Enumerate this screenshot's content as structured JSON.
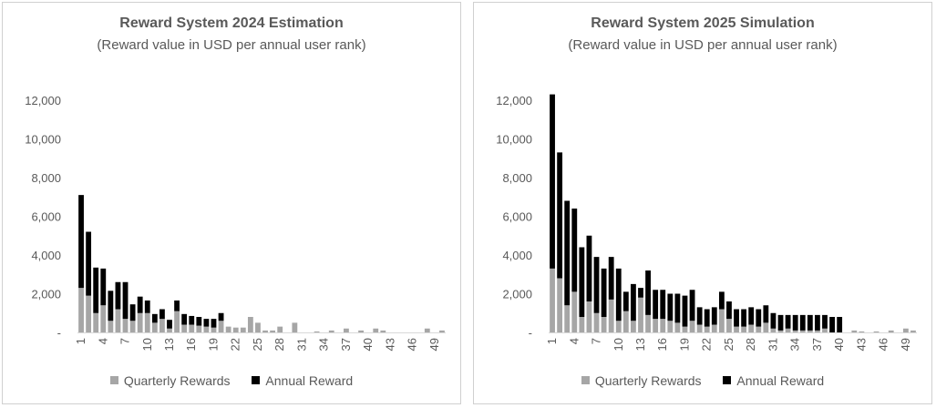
{
  "colors": {
    "quarterly": "#a6a6a6",
    "annual": "#000000",
    "axis": "#d9d9d9",
    "text": "#595959"
  },
  "chart_data": [
    {
      "type": "bar",
      "stacked": true,
      "title": "Reward System 2024 Estimation",
      "subtitle": "(Reward value in USD per annual user rank)",
      "xlabel": "",
      "ylabel": "",
      "ylim": [
        0,
        12000
      ],
      "y_ticks": [
        "-",
        "2,000",
        "4,000",
        "6,000",
        "8,000",
        "10,000",
        "12,000"
      ],
      "y_tick_values": [
        0,
        2000,
        4000,
        6000,
        8000,
        10000,
        12000
      ],
      "x": [
        1,
        2,
        3,
        4,
        5,
        6,
        7,
        8,
        9,
        10,
        11,
        12,
        13,
        14,
        15,
        16,
        17,
        18,
        19,
        20,
        21,
        22,
        23,
        24,
        25,
        26,
        27,
        28,
        29,
        30,
        31,
        32,
        33,
        34,
        35,
        36,
        37,
        38,
        39,
        40,
        41,
        42,
        43,
        44,
        45,
        46,
        47,
        48,
        49,
        50
      ],
      "x_tick_labels": [
        "1",
        "4",
        "7",
        "10",
        "13",
        "16",
        "19",
        "22",
        "25",
        "28",
        "31",
        "34",
        "37",
        "40",
        "43",
        "46",
        "49"
      ],
      "grid": false,
      "legend_position": "bottom",
      "series": [
        {
          "name": "Quarterly Rewards",
          "values": [
            2300,
            1900,
            1000,
            1400,
            600,
            1200,
            700,
            600,
            1000,
            1000,
            500,
            700,
            200,
            1100,
            400,
            400,
            350,
            300,
            250,
            600,
            300,
            250,
            250,
            800,
            500,
            100,
            100,
            300,
            0,
            500,
            0,
            0,
            50,
            0,
            100,
            0,
            200,
            0,
            100,
            0,
            200,
            100,
            0,
            0,
            0,
            0,
            0,
            200,
            0,
            100
          ]
        },
        {
          "name": "Annual Reward",
          "values": [
            4800,
            3300,
            2350,
            1900,
            1550,
            1400,
            1900,
            850,
            850,
            650,
            450,
            500,
            450,
            550,
            550,
            450,
            450,
            400,
            450,
            400,
            0,
            0,
            0,
            0,
            0,
            0,
            0,
            0,
            0,
            0,
            0,
            0,
            0,
            0,
            0,
            0,
            0,
            0,
            0,
            0,
            0,
            0,
            0,
            0,
            0,
            0,
            0,
            0,
            0,
            0
          ]
        }
      ]
    },
    {
      "type": "bar",
      "stacked": true,
      "title": "Reward System 2025 Simulation",
      "subtitle": "(Reward value in USD per annual user rank)",
      "xlabel": "",
      "ylabel": "",
      "ylim": [
        0,
        12000
      ],
      "y_ticks": [
        "-",
        "2,000",
        "4,000",
        "6,000",
        "8,000",
        "10,000",
        "12,000"
      ],
      "y_tick_values": [
        0,
        2000,
        4000,
        6000,
        8000,
        10000,
        12000
      ],
      "x": [
        1,
        2,
        3,
        4,
        5,
        6,
        7,
        8,
        9,
        10,
        11,
        12,
        13,
        14,
        15,
        16,
        17,
        18,
        19,
        20,
        21,
        22,
        23,
        24,
        25,
        26,
        27,
        28,
        29,
        30,
        31,
        32,
        33,
        34,
        35,
        36,
        37,
        38,
        39,
        40,
        41,
        42,
        43,
        44,
        45,
        46,
        47,
        48,
        49,
        50
      ],
      "x_tick_labels": [
        "1",
        "4",
        "7",
        "10",
        "13",
        "16",
        "19",
        "22",
        "25",
        "28",
        "31",
        "34",
        "37",
        "40",
        "43",
        "46",
        "49"
      ],
      "grid": false,
      "legend_position": "bottom",
      "series": [
        {
          "name": "Quarterly Rewards",
          "values": [
            3300,
            2800,
            1400,
            2100,
            800,
            1600,
            1000,
            800,
            1700,
            600,
            1100,
            600,
            1800,
            900,
            700,
            700,
            600,
            500,
            300,
            600,
            400,
            300,
            400,
            1200,
            700,
            300,
            300,
            400,
            300,
            500,
            200,
            100,
            200,
            100,
            100,
            100,
            100,
            200,
            0,
            0,
            0,
            100,
            50,
            0,
            50,
            0,
            100,
            0,
            200,
            100
          ]
        },
        {
          "name": "Annual Reward",
          "values": [
            9000,
            6500,
            5400,
            4300,
            3600,
            3400,
            2900,
            2500,
            2200,
            2700,
            1000,
            1900,
            500,
            2300,
            1500,
            1500,
            1400,
            1500,
            1600,
            1600,
            900,
            900,
            900,
            900,
            900,
            900,
            900,
            900,
            900,
            900,
            800,
            800,
            700,
            800,
            800,
            800,
            800,
            700,
            800,
            800,
            0,
            0,
            0,
            0,
            0,
            0,
            0,
            0,
            0,
            0
          ]
        }
      ]
    }
  ]
}
